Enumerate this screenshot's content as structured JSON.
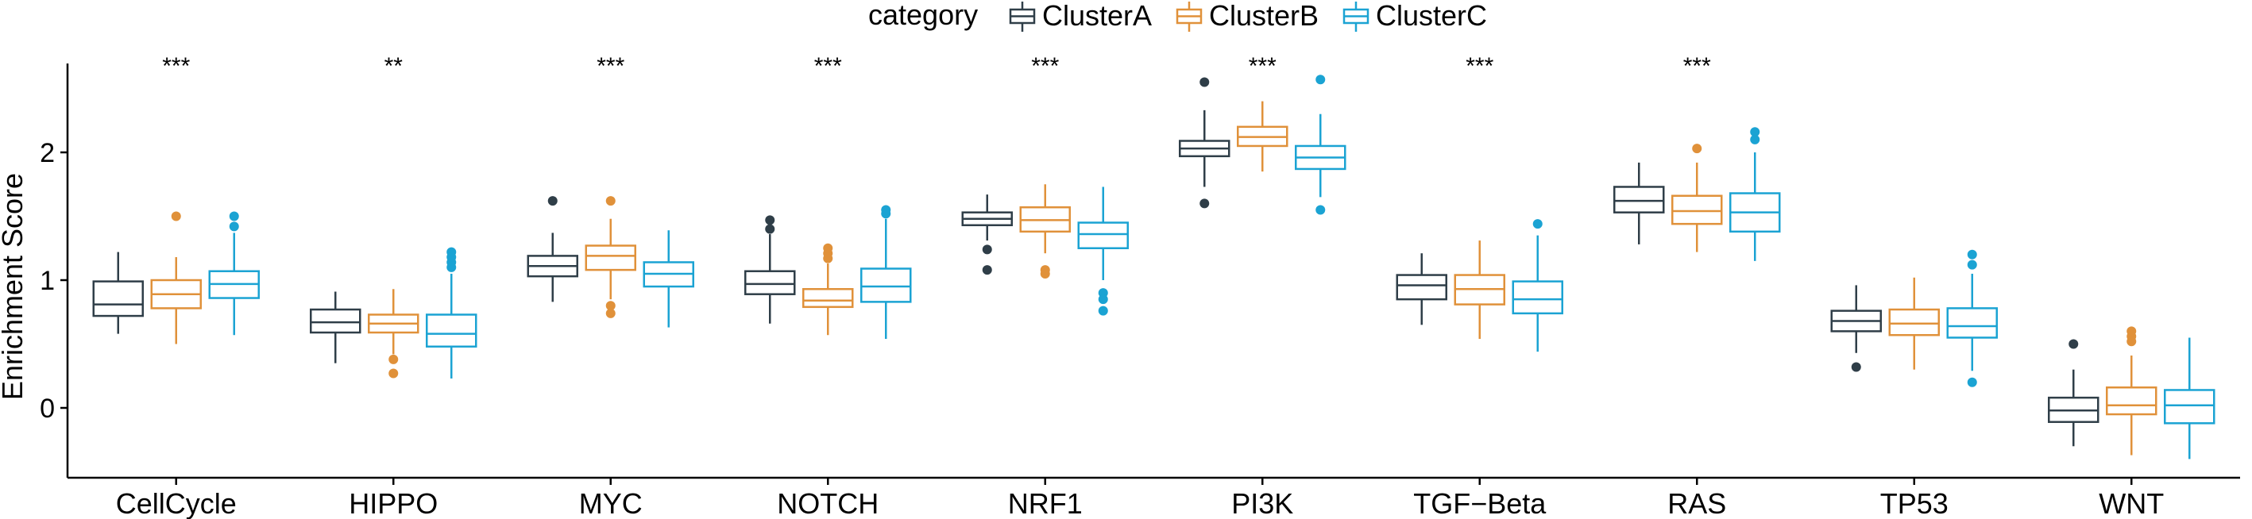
{
  "chart_data": {
    "type": "boxplot",
    "title": "",
    "xlabel": "",
    "ylabel": "Enrichment Score",
    "ylim": [
      -0.55,
      2.7
    ],
    "yticks": [
      0,
      1,
      2
    ],
    "grid": false,
    "legend": {
      "title": "category",
      "placement": "top",
      "entries": [
        "ClusterA",
        "ClusterB",
        "ClusterC"
      ]
    },
    "colors": {
      "ClusterA": "#2F3E48",
      "ClusterB": "#E0913A",
      "ClusterC": "#1BA3D3"
    },
    "categories": [
      "CellCycle",
      "HIPPO",
      "MYC",
      "NOTCH",
      "NRF1",
      "PI3K",
      "TGF−Beta",
      "RAS",
      "TP53",
      "WNT"
    ],
    "significance": [
      "***",
      "**",
      "***",
      "***",
      "***",
      "***",
      "***",
      "***",
      "",
      ""
    ],
    "series": [
      {
        "name": "ClusterA",
        "boxes": [
          {
            "low": 0.58,
            "q1": 0.72,
            "median": 0.81,
            "q3": 0.99,
            "high": 1.22,
            "outliers": []
          },
          {
            "low": 0.35,
            "q1": 0.59,
            "median": 0.67,
            "q3": 0.77,
            "high": 0.91,
            "outliers": []
          },
          {
            "low": 0.83,
            "q1": 1.03,
            "median": 1.11,
            "q3": 1.19,
            "high": 1.37,
            "outliers": [
              1.62
            ]
          },
          {
            "low": 0.66,
            "q1": 0.89,
            "median": 0.97,
            "q3": 1.07,
            "high": 1.36,
            "outliers": [
              1.4,
              1.47
            ]
          },
          {
            "low": 1.31,
            "q1": 1.43,
            "median": 1.48,
            "q3": 1.53,
            "high": 1.67,
            "outliers": [
              1.24,
              1.08
            ]
          },
          {
            "low": 1.73,
            "q1": 1.97,
            "median": 2.03,
            "q3": 2.09,
            "high": 2.33,
            "outliers": [
              2.55,
              1.6
            ]
          },
          {
            "low": 0.65,
            "q1": 0.85,
            "median": 0.96,
            "q3": 1.04,
            "high": 1.21,
            "outliers": []
          },
          {
            "low": 1.28,
            "q1": 1.53,
            "median": 1.62,
            "q3": 1.73,
            "high": 1.92,
            "outliers": []
          },
          {
            "low": 0.43,
            "q1": 0.6,
            "median": 0.68,
            "q3": 0.76,
            "high": 0.96,
            "outliers": [
              0.32
            ]
          },
          {
            "low": -0.3,
            "q1": -0.11,
            "median": -0.02,
            "q3": 0.08,
            "high": 0.3,
            "outliers": [
              0.5
            ]
          }
        ]
      },
      {
        "name": "ClusterB",
        "boxes": [
          {
            "low": 0.5,
            "q1": 0.78,
            "median": 0.89,
            "q3": 1.0,
            "high": 1.18,
            "outliers": [
              1.5
            ]
          },
          {
            "low": 0.42,
            "q1": 0.59,
            "median": 0.66,
            "q3": 0.73,
            "high": 0.93,
            "outliers": [
              0.38,
              0.27
            ]
          },
          {
            "low": 0.85,
            "q1": 1.08,
            "median": 1.19,
            "q3": 1.27,
            "high": 1.48,
            "outliers": [
              1.62,
              0.8,
              0.74
            ]
          },
          {
            "low": 0.57,
            "q1": 0.79,
            "median": 0.84,
            "q3": 0.93,
            "high": 1.13,
            "outliers": [
              1.17,
              1.21,
              1.25
            ]
          },
          {
            "low": 1.21,
            "q1": 1.38,
            "median": 1.47,
            "q3": 1.57,
            "high": 1.75,
            "outliers": [
              1.08,
              1.05
            ]
          },
          {
            "low": 1.85,
            "q1": 2.05,
            "median": 2.12,
            "q3": 2.2,
            "high": 2.4,
            "outliers": []
          },
          {
            "low": 0.54,
            "q1": 0.81,
            "median": 0.93,
            "q3": 1.04,
            "high": 1.31,
            "outliers": []
          },
          {
            "low": 1.22,
            "q1": 1.44,
            "median": 1.54,
            "q3": 1.66,
            "high": 1.92,
            "outliers": [
              2.03
            ]
          },
          {
            "low": 0.3,
            "q1": 0.57,
            "median": 0.66,
            "q3": 0.77,
            "high": 1.02,
            "outliers": []
          },
          {
            "low": -0.37,
            "q1": -0.05,
            "median": 0.02,
            "q3": 0.16,
            "high": 0.41,
            "outliers": [
              0.52,
              0.56,
              0.6
            ]
          }
        ]
      },
      {
        "name": "ClusterC",
        "boxes": [
          {
            "low": 0.57,
            "q1": 0.86,
            "median": 0.97,
            "q3": 1.07,
            "high": 1.37,
            "outliers": [
              1.42,
              1.5
            ]
          },
          {
            "low": 0.23,
            "q1": 0.48,
            "median": 0.58,
            "q3": 0.73,
            "high": 1.05,
            "outliers": [
              1.1,
              1.14,
              1.18,
              1.22
            ]
          },
          {
            "low": 0.63,
            "q1": 0.95,
            "median": 1.05,
            "q3": 1.14,
            "high": 1.39,
            "outliers": []
          },
          {
            "low": 0.54,
            "q1": 0.83,
            "median": 0.95,
            "q3": 1.09,
            "high": 1.48,
            "outliers": [
              1.52,
              1.55
            ]
          },
          {
            "low": 1.0,
            "q1": 1.25,
            "median": 1.36,
            "q3": 1.45,
            "high": 1.73,
            "outliers": [
              0.9,
              0.85,
              0.76
            ]
          },
          {
            "low": 1.65,
            "q1": 1.87,
            "median": 1.96,
            "q3": 2.05,
            "high": 2.3,
            "outliers": [
              2.57,
              1.55
            ]
          },
          {
            "low": 0.44,
            "q1": 0.74,
            "median": 0.85,
            "q3": 0.99,
            "high": 1.35,
            "outliers": [
              1.44
            ]
          },
          {
            "low": 1.15,
            "q1": 1.38,
            "median": 1.53,
            "q3": 1.68,
            "high": 2.0,
            "outliers": [
              2.1,
              2.16
            ]
          },
          {
            "low": 0.29,
            "q1": 0.55,
            "median": 0.64,
            "q3": 0.78,
            "high": 1.05,
            "outliers": [
              1.12,
              1.2,
              0.2
            ]
          },
          {
            "low": -0.4,
            "q1": -0.12,
            "median": 0.02,
            "q3": 0.14,
            "high": 0.55,
            "outliers": []
          }
        ]
      }
    ]
  }
}
